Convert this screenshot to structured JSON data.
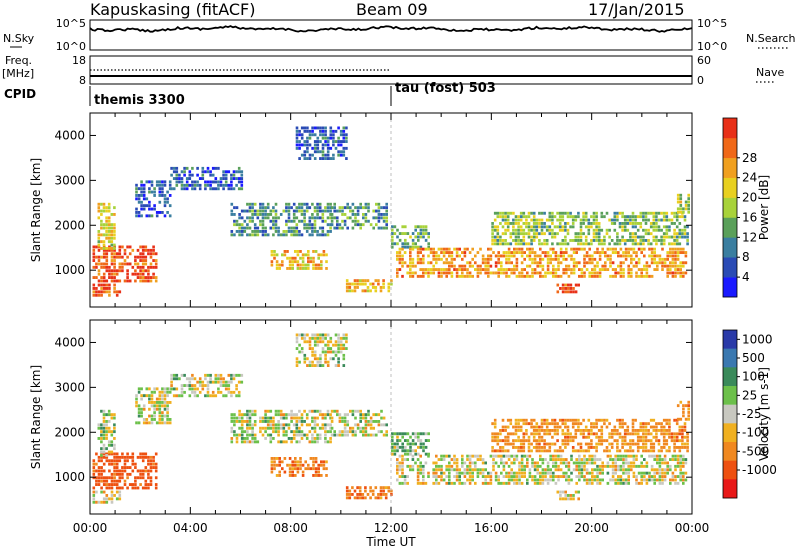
{
  "header": {
    "station": "Kapuskasing (fitACF)",
    "beam": "Beam 09",
    "date": "17/Jan/2015"
  },
  "side_labels": {
    "nsky": "N.Sky",
    "freq_top": "Freq.",
    "freq_unit": "[MHz]",
    "cpid": "CPID",
    "nsearch": "N.Search",
    "nave": "Nave"
  },
  "cpid_modes": [
    "themis 3300",
    "tau (fost) 503"
  ],
  "chart_data": {
    "type": "heatmap",
    "x_axis": {
      "label": "Time UT",
      "ticks": [
        "00:00",
        "04:00",
        "08:00",
        "12:00",
        "16:00",
        "20:00",
        "00:00"
      ],
      "range_hours": [
        0,
        24
      ]
    },
    "y_axis": {
      "label": "Slant Range [km]",
      "ticks": [
        1000,
        2000,
        3000,
        4000
      ],
      "range": [
        180,
        4500
      ]
    },
    "noise_panel": {
      "left_ticks": [
        "10^5",
        "10^0"
      ],
      "right_ticks": [
        "10^5",
        "10^0"
      ]
    },
    "freq_panel": {
      "left_ticks": [
        18,
        8
      ],
      "right_ticks": [
        60,
        0
      ],
      "freq_mhz": 10.5
    },
    "mode_change_hour": 12.0,
    "panels": [
      {
        "quantity": "Power",
        "colorbar_label": "Power [dB]",
        "colorbar_ticks": [
          4,
          8,
          12,
          16,
          20,
          24,
          28
        ],
        "range": [
          0,
          30
        ],
        "colors": [
          "#1a1aff",
          "#2a4bb5",
          "#3a7ea0",
          "#5aa05a",
          "#a8d23a",
          "#e8d020",
          "#f0a020",
          "#f06818",
          "#e83018"
        ]
      },
      {
        "quantity": "Velocity",
        "colorbar_label": "Velocity [m s-1]",
        "colorbar_ticks": [
          1000,
          500,
          100,
          25,
          -25,
          -100,
          -500,
          -1000
        ],
        "colors": [
          "#2a3aa8",
          "#3a78b0",
          "#3a8a5a",
          "#6cc04a",
          "#c8c8c0",
          "#f0b020",
          "#f08820",
          "#ee5010",
          "#e81818"
        ]
      }
    ],
    "echo_regions": [
      {
        "t0": 0.1,
        "t1": 1.2,
        "r0": 400,
        "r1": 700,
        "power": 27,
        "velocity": -40
      },
      {
        "t0": 0.1,
        "t1": 2.6,
        "r0": 750,
        "r1": 1550,
        "power": 27,
        "velocity": -350
      },
      {
        "t0": 0.3,
        "t1": 1.0,
        "r0": 1500,
        "r1": 2500,
        "power": 18,
        "velocity": 50
      },
      {
        "t0": 1.8,
        "t1": 3.2,
        "r0": 2200,
        "r1": 3000,
        "power": 6,
        "velocity": 0
      },
      {
        "t0": 3.2,
        "t1": 6.0,
        "r0": 2800,
        "r1": 3300,
        "power": 6,
        "velocity": 0
      },
      {
        "t0": 5.6,
        "t1": 9.6,
        "r0": 1800,
        "r1": 2500,
        "power": 10,
        "velocity": 0
      },
      {
        "t0": 7.2,
        "t1": 9.4,
        "r0": 1050,
        "r1": 1450,
        "power": 20,
        "velocity": -180
      },
      {
        "t0": 8.2,
        "t1": 10.2,
        "r0": 3500,
        "r1": 4200,
        "power": 6,
        "velocity": 0
      },
      {
        "t0": 9.6,
        "t1": 11.8,
        "r0": 1900,
        "r1": 2500,
        "power": 10,
        "velocity": 0
      },
      {
        "t0": 10.2,
        "t1": 12.0,
        "r0": 550,
        "r1": 800,
        "power": 20,
        "velocity": -200
      },
      {
        "t0": 12.0,
        "t1": 13.5,
        "r0": 1500,
        "r1": 2000,
        "power": 12,
        "velocity": 60
      },
      {
        "t0": 12.2,
        "t1": 23.8,
        "r0": 850,
        "r1": 1500,
        "power": 22,
        "velocity": -10
      },
      {
        "t0": 16.0,
        "t1": 23.8,
        "r0": 1600,
        "r1": 2300,
        "power": 14,
        "velocity": -150
      },
      {
        "t0": 18.6,
        "t1": 19.5,
        "r0": 500,
        "r1": 700,
        "power": 28,
        "velocity": 0
      },
      {
        "t0": 23.4,
        "t1": 23.9,
        "r0": 2300,
        "r1": 2700,
        "power": 16,
        "velocity": -200
      }
    ]
  }
}
